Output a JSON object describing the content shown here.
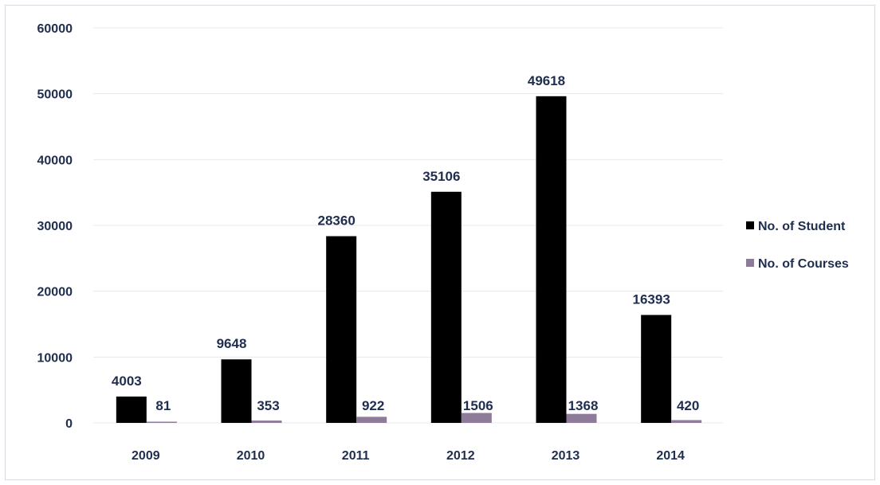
{
  "chart_data": {
    "type": "bar",
    "categories": [
      "2009",
      "2010",
      "2011",
      "2012",
      "2013",
      "2014"
    ],
    "series": [
      {
        "name": "No. of Student",
        "values": [
          4003,
          9648,
          28360,
          35106,
          49618,
          16393
        ],
        "color": "#000000"
      },
      {
        "name": "No. of Courses",
        "values": [
          81,
          353,
          922,
          1506,
          1368,
          420
        ],
        "color": "#8e7a99"
      }
    ],
    "y_ticks": [
      "0",
      "10000",
      "20000",
      "30000",
      "40000",
      "50000",
      "60000"
    ],
    "ylim": [
      0,
      60000
    ],
    "grid": true,
    "legend": "right",
    "data_labels": true
  }
}
